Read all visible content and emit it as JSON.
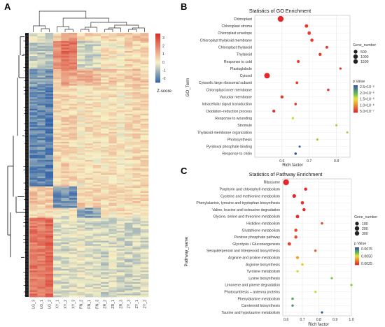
{
  "panels": {
    "a": "A",
    "b": "B",
    "c": "C"
  },
  "chart_data": [
    {
      "type": "heatmap",
      "columns": [
        "LG_3",
        "LG_1",
        "LG_2",
        "XY_1",
        "XY_2",
        "XY_3",
        "FN_2",
        "FN_1",
        "FN_3",
        "ZR_2",
        "ZR_1",
        "ZR_3",
        "ZY_3",
        "ZY_1",
        "ZY_2"
      ],
      "colorbar_title": "Z-score",
      "colorbar_ticks": [
        "3",
        "2",
        "1",
        "0",
        "-1",
        "-2"
      ],
      "colorbar_range": [
        -2.5,
        3.5
      ],
      "colors": {
        "low": "#2b5fa8",
        "mid": "#f7f1c6",
        "high": "#d73027"
      },
      "column_clusters": [
        {
          "name": "LG",
          "values": [
            2.4,
            2.2,
            2.6
          ]
        },
        {
          "name": "XY",
          "values": [
            0.3,
            1.1,
            1.4
          ]
        },
        {
          "name": "FN",
          "values": [
            -0.4,
            -0.9,
            -0.6
          ]
        },
        {
          "name": "ZR",
          "values": [
            -0.2,
            -0.5,
            -0.4
          ]
        },
        {
          "name": "ZY",
          "values": [
            -0.3,
            -0.1,
            0.2
          ]
        }
      ]
    },
    {
      "type": "scatter",
      "title": "Statistics of GO Enrichment",
      "xlabel": "Rich factor",
      "ylabel": "GO_Term",
      "xlim": [
        0.5,
        0.85
      ],
      "xticks": [
        "0.6",
        "0.7",
        "0.8"
      ],
      "size_legend": {
        "title": "Gene_number",
        "items": [
          "500",
          "1000",
          "1500"
        ]
      },
      "color_legend": {
        "title": "p Value",
        "items": [
          "2.5×10⁻⁶",
          "2.0×10⁻⁶",
          "1.5×10⁻⁶",
          "1.0×10⁻⁶",
          "5.0×10⁻⁷"
        ]
      },
      "terms": [
        "Chloroplast",
        "Chloroplast stroma",
        "Chloroplast envelope",
        "Chloroplast thylakoid membrane",
        "Chloroplast thylakoid",
        "Thylakoid",
        "Response to cold",
        "Plastoglobule",
        "Cytosol",
        "Cytosolic large ribosomal subunit",
        "Chloroplast inner membrane",
        "Vacuolar membrane",
        "Intracellular signal transduction",
        "Oxidation–reduction process",
        "Response to wounding",
        "Stromule",
        "Thylakoid membrane organization",
        "Photosynthesis",
        "Pyridoxal phosphate binding",
        "Response to chitin"
      ],
      "rich": [
        0.595,
        0.69,
        0.7,
        0.71,
        0.765,
        0.74,
        0.66,
        0.815,
        0.545,
        0.655,
        0.77,
        0.6,
        0.65,
        0.57,
        0.64,
        0.8,
        0.84,
        0.73,
        0.665,
        0.65
      ],
      "genes": [
        1600,
        280,
        260,
        220,
        110,
        160,
        120,
        35,
        1350,
        85,
        60,
        180,
        70,
        150,
        40,
        18,
        12,
        30,
        25,
        60
      ],
      "pvalue": [
        5e-07,
        6e-07,
        6e-07,
        6e-07,
        6e-07,
        6e-07,
        6e-07,
        6e-07,
        5e-07,
        6e-07,
        6e-07,
        6e-07,
        6e-07,
        5.5e-07,
        1.6e-06,
        1.7e-06,
        1.7e-06,
        1.7e-06,
        2.4e-06,
        2.5e-06
      ]
    },
    {
      "type": "scatter",
      "title": "Statistics of Pathway Enrichment",
      "xlabel": "Rich factor",
      "ylabel": "Pathway_name",
      "xlim": [
        0.58,
        1.0
      ],
      "xticks": [
        "0.6",
        "0.7",
        "0.8",
        "0.9",
        "1.0"
      ],
      "size_legend": {
        "title": "Gene_number",
        "items": [
          "100",
          "200",
          "300"
        ]
      },
      "color_legend": {
        "title": "p Value",
        "items": [
          "0.0075",
          "0.0050",
          "0.0025"
        ]
      },
      "terms": [
        "Ribosome",
        "Porphyrin and chlorophyll metabolism",
        "Cysteine and methionine metabolism",
        "Phenylalanine, tyrosine and tryptophan biosynthesis",
        "Valine, leucine and isoleucine degradation",
        "Glycine, serine and threonine metabolism",
        "Histidine metabolism",
        "Glutathione metabolism",
        "Pentose phosphate pathway",
        "Glycolysis / Gluconeogenesis",
        "Sesquiterpenoid and triterpenoid biosynthesis",
        "Arginine and proline metabolism",
        "Arginine biosynthesis",
        "Tyrosine metabolism",
        "Lysine biosynthesis",
        "Limonene and pinene degradation",
        "Photosynthesis – antenna proteins",
        "Phenylalanine metabolism",
        "Carotenoid biosynthesis",
        "Taurine and hypotaurine metabolism"
      ],
      "rich": [
        0.6,
        0.72,
        0.65,
        0.7,
        0.71,
        0.67,
        0.82,
        0.66,
        0.66,
        0.62,
        0.78,
        0.67,
        0.7,
        0.67,
        0.88,
        1.0,
        0.78,
        0.64,
        0.64,
        0.82
      ],
      "genes": [
        330,
        40,
        75,
        45,
        40,
        60,
        10,
        40,
        40,
        55,
        10,
        25,
        12,
        10,
        6,
        5,
        8,
        12,
        10,
        6
      ],
      "pvalue": [
        0.0003,
        0.0003,
        0.0003,
        0.0004,
        0.0004,
        0.0005,
        0.001,
        0.001,
        0.001,
        0.001,
        0.0015,
        0.003,
        0.004,
        0.005,
        0.006,
        0.006,
        0.005,
        0.007,
        0.0075,
        0.009
      ]
    }
  ]
}
